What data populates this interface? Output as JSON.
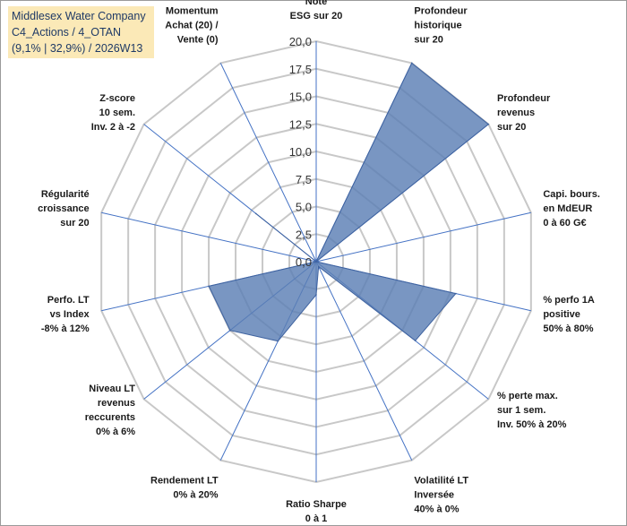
{
  "title_box": {
    "line1": "Middlesex Water Company",
    "line2": "C4_Actions / 4_OTAN",
    "line3": "(9,1% | 32,9%) / 2026W13"
  },
  "chart_data": {
    "type": "radar",
    "ylim": [
      0,
      20
    ],
    "tick_step": 2.5,
    "tick_labels": [
      "0,0",
      "2,5",
      "5,0",
      "7,5",
      "10,0",
      "12,5",
      "15,0",
      "17,5",
      "20,0"
    ],
    "grid": true,
    "colors": {
      "fill": "#5b7fb5",
      "fill_opacity": 0.82,
      "stroke": "#3f63a0",
      "grid": "#c8c8c8",
      "axis": "#4472c4"
    },
    "categories": [
      [
        "Note",
        "ESG sur 20"
      ],
      [
        "Profondeur",
        "historique",
        "sur 20"
      ],
      [
        "Profondeur",
        "revenus",
        "sur 20"
      ],
      [
        "Capi. bours.",
        "en MdEUR",
        "0 à 60 G€"
      ],
      [
        "% perfo 1A",
        "positive",
        "50% à 80%"
      ],
      [
        "% perte max.",
        "sur 1 sem.",
        "Inv. 50% à 20%"
      ],
      [
        "Volatilité LT",
        "Inversée",
        "40% à 0%"
      ],
      [
        "Ratio Sharpe",
        "0 à 1"
      ],
      [
        "Rendement LT",
        "0% à 20%"
      ],
      [
        "Niveau LT",
        "revenus",
        "reccurents",
        "0% à 6%"
      ],
      [
        "Perfo. LT",
        "vs Index",
        "-8% à 12%"
      ],
      [
        "Régularité",
        "croissance",
        "sur 20"
      ],
      [
        "Z-score",
        "10 sem.",
        "Inv. 2 à -2"
      ],
      [
        "Momentum",
        "Achat (20) /",
        "Vente (0)"
      ]
    ],
    "values": [
      0,
      20,
      20,
      0,
      13,
      11.5,
      0.5,
      3,
      8,
      10,
      10,
      0,
      7,
      0
    ]
  }
}
